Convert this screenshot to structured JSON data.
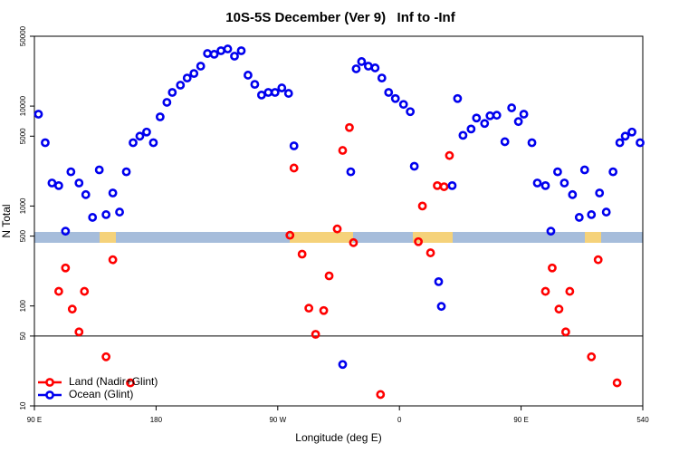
{
  "chart_data": {
    "type": "scatter",
    "title": "10S-5S December (Ver 9)   Inf to -Inf",
    "x_label": "Longitude (deg E)",
    "y_label": "N Total",
    "log_y": true,
    "xlim": [
      90,
      540
    ],
    "xticks": [
      {
        "value": 90,
        "label": "90 E"
      },
      180,
      {
        "value": 270,
        "label": "90 W"
      },
      {
        "value": 360,
        "label": "0"
      },
      {
        "value": 450,
        "label": "90 E"
      },
      540
    ],
    "ylim": [
      10,
      50000
    ],
    "yticks": [
      10,
      50,
      100,
      500,
      1000,
      5000,
      10000,
      50000
    ],
    "reference_line": 50,
    "legend": "bottom-left",
    "series": [
      {
        "name": "Land (Nadir+Glint)",
        "color": "#ff0000",
        "x": [
          113,
          108,
          118,
          123,
          127,
          143,
          148,
          161,
          279,
          282,
          288,
          293,
          298,
          304,
          308,
          314,
          318,
          323,
          326,
          346,
          374,
          377,
          383,
          388,
          393,
          397,
          468,
          473,
          478,
          483,
          486,
          502,
          507,
          521
        ],
        "values": [
          240,
          140,
          93,
          55,
          140,
          31,
          290,
          17,
          510,
          2400,
          330,
          95,
          52,
          90,
          200,
          590,
          3600,
          6100,
          430,
          13,
          440,
          1000,
          340,
          1600,
          1560,
          3200,
          140,
          240,
          93,
          55,
          140,
          31,
          290,
          17
        ]
      },
      {
        "name": "Ocean (Glint)",
        "color": "#0000ee",
        "x": [
          93,
          98,
          103,
          108,
          113,
          117,
          123,
          128,
          133,
          138,
          143,
          148,
          153,
          158,
          163,
          168,
          173,
          178,
          183,
          188,
          192,
          198,
          203,
          208,
          213,
          218,
          223,
          228,
          233,
          238,
          243,
          248,
          253,
          258,
          263,
          268,
          273,
          278,
          282,
          318,
          324,
          328,
          332,
          337,
          342,
          347,
          352,
          357,
          363,
          368,
          371,
          389,
          391,
          399,
          403,
          407,
          413,
          417,
          423,
          427,
          432,
          438,
          443,
          448,
          452,
          458,
          462,
          468,
          472,
          477,
          482,
          488,
          493,
          497,
          502,
          508,
          513,
          518,
          523,
          527,
          532,
          538
        ],
        "values": [
          8300,
          4300,
          1700,
          1600,
          560,
          2200,
          1700,
          1300,
          770,
          2300,
          820,
          1350,
          870,
          2200,
          4300,
          5000,
          5500,
          4300,
          7800,
          10900,
          13700,
          16200,
          19100,
          21200,
          25100,
          33600,
          33000,
          35800,
          37300,
          31600,
          35800,
          20400,
          16500,
          12900,
          13700,
          13700,
          15200,
          13400,
          4000,
          26,
          2200,
          23600,
          27900,
          25100,
          24100,
          19100,
          13700,
          11900,
          10400,
          8800,
          2500,
          175,
          99,
          1600,
          11900,
          5100,
          5900,
          7600,
          6700,
          8000,
          8100,
          4400,
          9600,
          7000,
          8300,
          4300,
          1700,
          1600,
          560,
          2200,
          1700,
          1300,
          770,
          2300,
          820,
          1350,
          870,
          2200,
          4300,
          5000,
          5500,
          4300
        ]
      }
    ]
  }
}
